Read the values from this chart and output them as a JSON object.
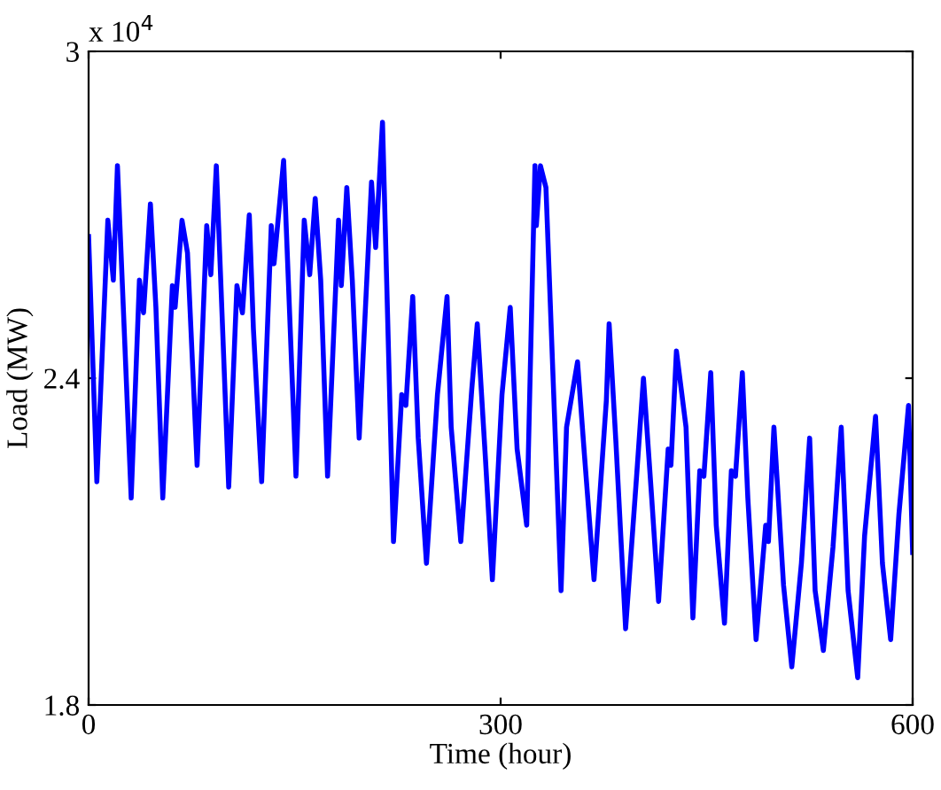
{
  "chart_data": {
    "type": "line",
    "xlabel": "Time (hour)",
    "ylabel": "Load (MW)",
    "annotations": [
      "x 10$^{4}$"
    ],
    "xlim": [
      0,
      600
    ],
    "xticks": [
      0,
      300,
      600
    ],
    "ylim": [
      1.8,
      3
    ],
    "yticks": [
      1.8,
      2.4,
      3
    ],
    "grid": false,
    "legend": false,
    "marker": "none",
    "line_style": "solid",
    "series": [
      {
        "color": "#0000ff",
        "x": [
          0,
          6,
          14,
          18,
          21,
          31,
          37,
          40,
          45,
          49,
          54,
          61,
          63,
          68,
          72,
          79,
          86,
          89,
          93,
          102,
          108,
          112,
          117,
          120,
          126,
          133,
          135,
          142,
          151,
          157,
          161,
          165,
          169,
          174,
          182,
          184,
          188,
          192,
          197,
          206,
          209,
          214,
          222,
          228,
          231,
          236,
          240,
          246,
          254,
          261,
          264,
          271,
          279,
          283,
          289,
          294,
          301,
          307,
          312,
          319,
          325,
          326,
          329,
          333,
          344,
          348,
          356,
          361,
          368,
          377,
          379,
          384,
          391,
          399,
          404,
          410,
          415,
          422,
          424,
          428,
          435,
          440,
          445,
          448,
          453,
          457,
          463,
          468,
          471,
          476,
          480,
          486,
          493,
          495,
          499,
          506,
          512,
          519,
          525,
          529,
          535,
          542,
          548,
          553,
          560,
          565,
          573,
          578,
          584,
          590,
          597,
          600
        ],
        "values": [
          2.66,
          2.21,
          2.69,
          2.58,
          2.79,
          2.18,
          2.58,
          2.52,
          2.72,
          2.53,
          2.18,
          2.57,
          2.53,
          2.69,
          2.63,
          2.24,
          2.68,
          2.59,
          2.79,
          2.2,
          2.57,
          2.52,
          2.7,
          2.49,
          2.21,
          2.68,
          2.61,
          2.8,
          2.22,
          2.69,
          2.59,
          2.73,
          2.58,
          2.22,
          2.69,
          2.57,
          2.75,
          2.58,
          2.29,
          2.76,
          2.64,
          2.87,
          2.1,
          2.37,
          2.35,
          2.55,
          2.29,
          2.06,
          2.37,
          2.55,
          2.31,
          2.1,
          2.38,
          2.5,
          2.25,
          2.03,
          2.37,
          2.53,
          2.27,
          2.13,
          2.79,
          2.68,
          2.79,
          2.75,
          2.01,
          2.31,
          2.43,
          2.26,
          2.03,
          2.36,
          2.5,
          2.28,
          1.94,
          2.22,
          2.4,
          2.18,
          1.99,
          2.27,
          2.24,
          2.45,
          2.31,
          1.96,
          2.23,
          2.22,
          2.41,
          2.13,
          1.95,
          2.23,
          2.22,
          2.41,
          2.18,
          1.92,
          2.13,
          2.1,
          2.31,
          2.02,
          1.87,
          2.06,
          2.29,
          2.01,
          1.9,
          2.09,
          2.31,
          2.01,
          1.85,
          2.11,
          2.33,
          2.06,
          1.92,
          2.15,
          2.35,
          2.08
        ]
      }
    ]
  }
}
